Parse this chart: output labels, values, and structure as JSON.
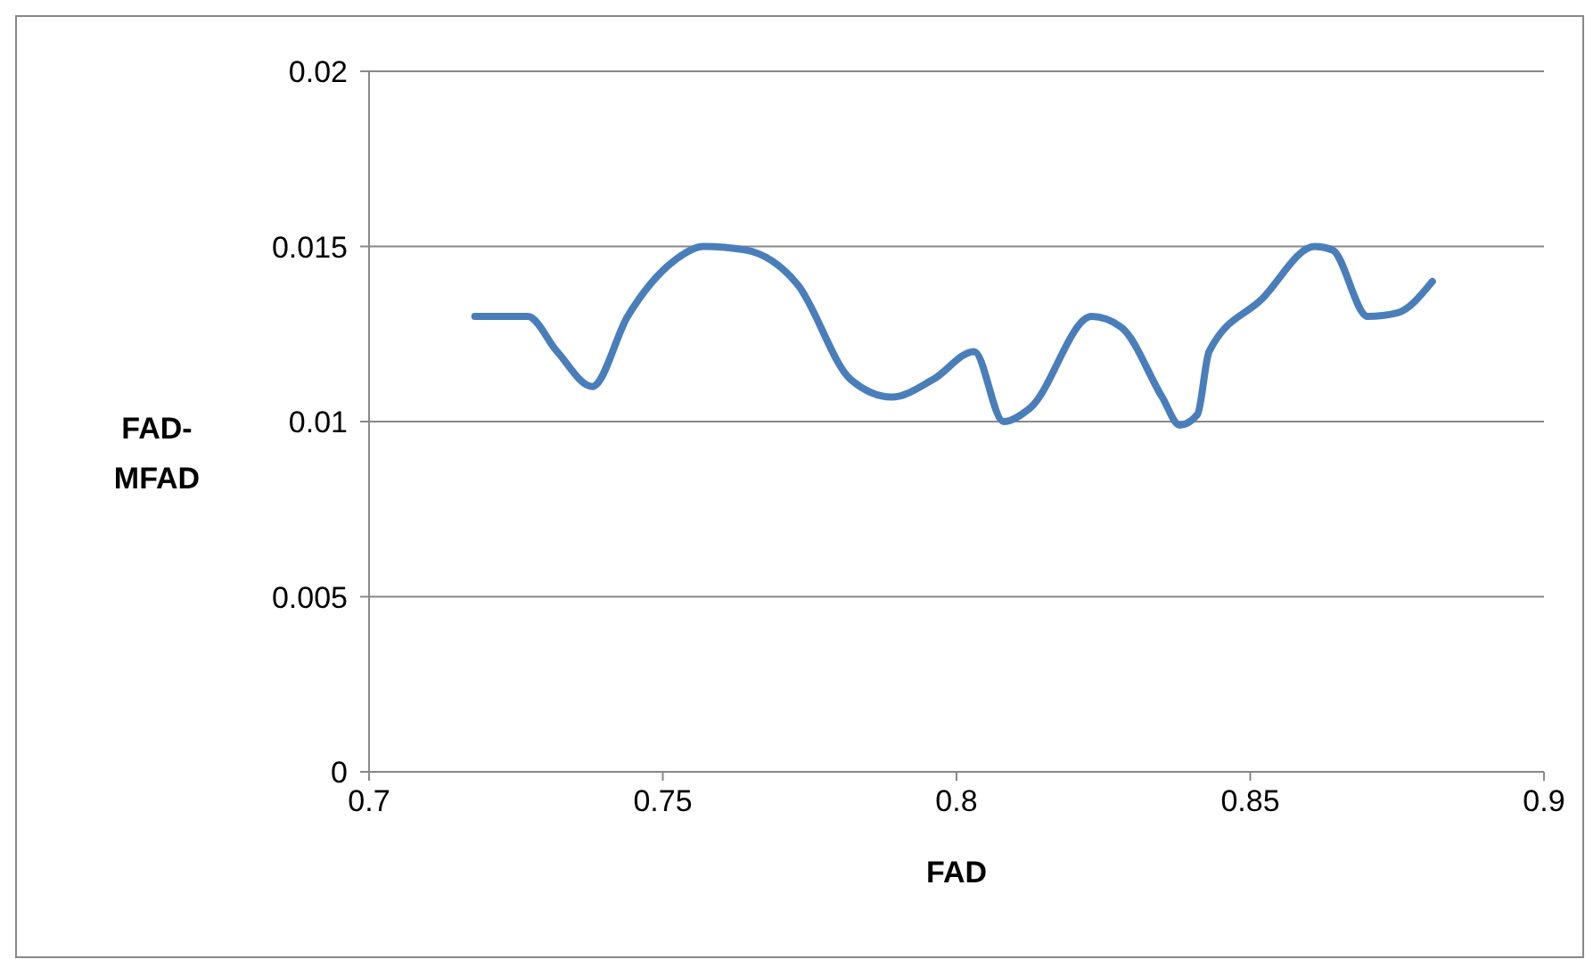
{
  "chart_data": {
    "type": "line",
    "xlabel": "FAD",
    "ylabel": "FAD-MFAD",
    "x": [
      0.718,
      0.727,
      0.732,
      0.738,
      0.744,
      0.752,
      0.757,
      0.764,
      0.773,
      0.782,
      0.789,
      0.796,
      0.803,
      0.808,
      0.8126,
      0.823,
      0.828,
      0.835,
      0.838,
      0.841,
      0.843,
      0.852,
      0.861,
      0.864,
      0.87,
      0.875,
      0.881
    ],
    "series": [
      {
        "color": "#4a7ebb",
        "values": [
          0.013,
          0.013,
          0.012,
          0.011,
          0.013,
          0.0146,
          0.015,
          0.0149,
          0.0139,
          0.0112,
          0.0107,
          0.0112,
          0.012,
          0.01,
          0.0104,
          0.013,
          0.0127,
          0.0107,
          0.0099,
          0.0102,
          0.012,
          0.0135,
          0.015,
          0.0149,
          0.013,
          0.0131,
          0.014
        ]
      }
    ],
    "xlim": [
      0.7,
      0.9
    ],
    "xticks": [
      0.7,
      0.75,
      0.8,
      0.85,
      0.9
    ],
    "ylim": [
      0,
      0.02
    ],
    "yticks": [
      0,
      0.005,
      0.01,
      0.015,
      0.02
    ],
    "grid": "y",
    "marker": "none",
    "line_style": "solid"
  }
}
